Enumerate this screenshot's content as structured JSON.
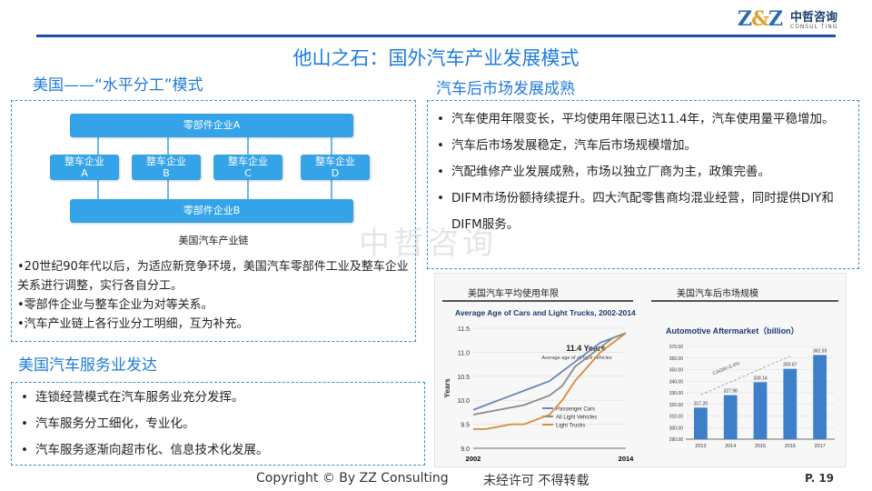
{
  "logo": {
    "mark": "Z&Z",
    "cn": "中哲咨询",
    "en": "CONSUL TING"
  },
  "title": "他山之石：国外汽车产业发展模式",
  "left": {
    "section1_title": "美国——“水平分工”模式",
    "chain": {
      "top": "零部件企业A",
      "bottom": "零部件企业B",
      "mid": [
        {
          "l1": "整车企业",
          "l2": "A"
        },
        {
          "l1": "整车企业",
          "l2": "B"
        },
        {
          "l1": "整车企业",
          "l2": "C"
        },
        {
          "l1": "整车企业",
          "l2": "D"
        }
      ],
      "caption": "美国汽车产业链"
    },
    "paras": [
      "•20世纪90年代以后，为适应新竞争环境，美国汽车零部件工业及整车企业关系进行调整，实行各自分工。",
      "•零部件企业与整车企业为对等关系。",
      "•汽车产业链上各行业分工明细，互为补充。"
    ],
    "section2_title": "美国汽车服务业发达",
    "bullets2": [
      "连锁经营模式在汽车服务业充分发挥。",
      "汽车服务分工细化，专业化。",
      "汽车服务逐渐向超市化、信息技术化发展。"
    ]
  },
  "right": {
    "section_title": "汽车后市场发展成熟",
    "bullets": [
      "汽车使用年限变长，平均使用年限已达11.4年，汽车使用量平稳增加。",
      "汽车后市场发展稳定，汽车后市场规模增加。",
      "汽配维修产业发展成熟，市场以独立厂商为主，政策完善。",
      "DIFM市场份额持续提升。四大汽配零售商均混业经营，同时提供DIY和DIFM服务。"
    ],
    "chart1_header": "美国汽车平均使用年限",
    "chart2_header": "美国汽车后市场规模"
  },
  "chart_data": [
    {
      "type": "line",
      "title": "Average Age of Cars and Light Trucks, 2002-2014",
      "annotation": "11.4 Years",
      "annotation_sub": "Average age of all light vehicles",
      "ylabel": "Years",
      "xlabel_left": "2002",
      "xlabel_right": "2014",
      "ylim": [
        9.0,
        11.5
      ],
      "yticks": [
        "9.0",
        "9.5",
        "10.0",
        "10.5",
        "11.0",
        "11.5"
      ],
      "x": [
        2002,
        2003,
        2004,
        2005,
        2006,
        2007,
        2008,
        2009,
        2010,
        2011,
        2012,
        2013,
        2014
      ],
      "series": [
        {
          "name": "Passenger Cars",
          "color": "#6b86b8",
          "values": [
            9.8,
            9.9,
            10.0,
            10.1,
            10.2,
            10.3,
            10.4,
            10.6,
            10.8,
            11.0,
            11.2,
            11.3,
            11.4
          ]
        },
        {
          "name": "All Light Vehicles",
          "color": "#8a8a8a",
          "values": [
            9.7,
            9.75,
            9.8,
            9.85,
            9.9,
            10.0,
            10.1,
            10.3,
            10.7,
            10.9,
            11.1,
            11.3,
            11.4
          ]
        },
        {
          "name": "Light Trucks",
          "color": "#d98a3a",
          "values": [
            9.4,
            9.4,
            9.45,
            9.5,
            9.5,
            9.6,
            9.7,
            10.0,
            10.4,
            10.7,
            11.0,
            11.2,
            11.4
          ]
        }
      ]
    },
    {
      "type": "bar",
      "title": "Automotive Aftermarket（billion）",
      "annotation": "CAGR=3.4%",
      "categories": [
        "2013",
        "2014",
        "2015",
        "2016",
        "2017"
      ],
      "values": [
        317.2,
        327.98,
        339.14,
        350.67,
        362.59
      ],
      "value_labels": [
        "317.20",
        "327.98",
        "339.14",
        "350.67",
        "362.59"
      ],
      "color": "#3d7fc8",
      "ylim": [
        290,
        370
      ],
      "yticks": [
        "290.00",
        "300.00",
        "310.00",
        "320.00",
        "330.00",
        "340.00",
        "350.00",
        "360.00",
        "370.00"
      ]
    }
  ],
  "watermark": "中哲咨询",
  "footer": {
    "copyright": "Copyright © By  ZZ Consulting",
    "notice": "未经许可 不得转载",
    "page": "P. 19"
  }
}
